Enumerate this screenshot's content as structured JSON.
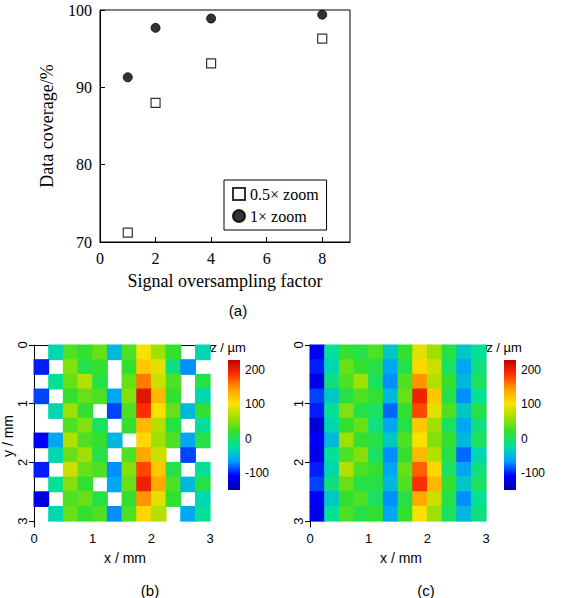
{
  "chart_data": [
    {
      "type": "scatter",
      "title": "(a)",
      "xlabel": "Signal oversampling factor",
      "ylabel": "Data coverage/%",
      "x": [
        1,
        2,
        4,
        8
      ],
      "series": [
        {
          "name": "0.5× zoom",
          "color": "#000000",
          "marker": "open_square",
          "values": [
            71.2,
            88.0,
            93.1,
            96.3
          ]
        },
        {
          "name": "1× zoom",
          "color": "#000000",
          "marker": "filled_circle",
          "values": [
            91.3,
            97.7,
            98.9,
            99.4
          ]
        }
      ],
      "xlim": [
        0,
        9
      ],
      "xticks": [
        0,
        2,
        4,
        6,
        8
      ],
      "ylim": [
        70,
        100
      ],
      "yticks": [
        70,
        80,
        90,
        100
      ],
      "grid": false,
      "legend": "lower right"
    },
    {
      "type": "heatmap",
      "title": "(b)",
      "xlabel": "x / mm",
      "ylabel": "y / mm",
      "xlim": [
        0,
        3.1
      ],
      "xticks": [
        0,
        1,
        2,
        3
      ],
      "ylim": [
        0,
        3.1
      ],
      "yticks": [
        0,
        1,
        2,
        3
      ],
      "x": [
        0.125,
        0.375,
        0.625,
        0.875,
        1.125,
        1.375,
        1.625,
        1.875,
        2.125,
        2.375,
        2.625,
        2.875
      ],
      "y": [
        0.125,
        0.375,
        0.625,
        0.875,
        1.125,
        1.375,
        1.625,
        1.875,
        2.125,
        2.375,
        2.625,
        2.875
      ],
      "z": [
        [
          null,
          -30,
          30,
          20,
          40,
          -50,
          30,
          100,
          60,
          20,
          null,
          -30
        ],
        [
          -100,
          null,
          50,
          10,
          20,
          null,
          20,
          120,
          90,
          -10,
          -70,
          null
        ],
        [
          null,
          -20,
          40,
          70,
          10,
          null,
          40,
          160,
          80,
          30,
          null,
          10
        ],
        [
          -90,
          null,
          20,
          40,
          30,
          -60,
          50,
          210,
          130,
          20,
          null,
          -30
        ],
        [
          null,
          -30,
          60,
          20,
          null,
          -90,
          30,
          190,
          100,
          40,
          -50,
          20
        ],
        [
          null,
          null,
          30,
          50,
          0,
          null,
          20,
          130,
          70,
          10,
          null,
          -20
        ],
        [
          -110,
          -60,
          70,
          30,
          20,
          -50,
          null,
          110,
          60,
          30,
          -60,
          10
        ],
        [
          null,
          -30,
          40,
          60,
          10,
          null,
          30,
          140,
          80,
          null,
          -90,
          null
        ],
        [
          -100,
          null,
          80,
          40,
          30,
          -70,
          50,
          180,
          120,
          10,
          null,
          -20
        ],
        [
          null,
          -20,
          50,
          20,
          null,
          -60,
          40,
          200,
          140,
          30,
          -50,
          10
        ],
        [
          -120,
          null,
          30,
          40,
          10,
          null,
          20,
          150,
          90,
          20,
          null,
          -30
        ],
        [
          null,
          -30,
          40,
          20,
          30,
          -70,
          30,
          110,
          70,
          null,
          -60,
          -20
        ]
      ],
      "colorbar": {
        "label": "z / µm",
        "range": [
          -150,
          230
        ],
        "ticks": [
          -100,
          0,
          100,
          200
        ]
      }
    },
    {
      "type": "heatmap",
      "title": "(c)",
      "xlabel": "x / mm",
      "xlim": [
        0,
        3.1
      ],
      "xticks": [
        0,
        1,
        2,
        3
      ],
      "ylim": [
        0,
        3.1
      ],
      "yticks": [
        0,
        1,
        2,
        3
      ],
      "x": [
        0.125,
        0.375,
        0.625,
        0.875,
        1.125,
        1.375,
        1.625,
        1.875,
        2.125,
        2.375,
        2.625,
        2.875
      ],
      "y": [
        0.125,
        0.375,
        0.625,
        0.875,
        1.125,
        1.375,
        1.625,
        1.875,
        2.125,
        2.375,
        2.625,
        2.875
      ],
      "z": [
        [
          -110,
          -20,
          20,
          10,
          30,
          -40,
          20,
          90,
          60,
          10,
          -40,
          -20
        ],
        [
          -100,
          -30,
          40,
          20,
          10,
          -60,
          10,
          110,
          80,
          0,
          -60,
          -10
        ],
        [
          -120,
          -10,
          30,
          60,
          0,
          -70,
          30,
          150,
          70,
          20,
          -50,
          0
        ],
        [
          -90,
          -40,
          10,
          30,
          20,
          -50,
          40,
          200,
          120,
          10,
          -70,
          -20
        ],
        [
          -100,
          -20,
          50,
          10,
          0,
          -80,
          20,
          180,
          90,
          30,
          -40,
          10
        ],
        [
          -130,
          -30,
          20,
          40,
          -10,
          -60,
          10,
          120,
          60,
          0,
          -60,
          -10
        ],
        [
          -110,
          -50,
          60,
          20,
          10,
          -40,
          30,
          100,
          50,
          20,
          -50,
          0
        ],
        [
          -120,
          -20,
          30,
          50,
          0,
          -70,
          20,
          130,
          70,
          10,
          -80,
          -30
        ],
        [
          -100,
          -30,
          70,
          30,
          20,
          -60,
          40,
          170,
          110,
          0,
          -60,
          -10
        ],
        [
          -90,
          -10,
          40,
          10,
          10,
          -50,
          30,
          190,
          130,
          20,
          -40,
          0
        ],
        [
          -110,
          -40,
          20,
          30,
          0,
          -70,
          10,
          140,
          80,
          10,
          -70,
          -20
        ],
        [
          -120,
          -20,
          30,
          10,
          20,
          -60,
          20,
          100,
          60,
          0,
          -50,
          -10
        ]
      ],
      "colorbar": {
        "label": "z / µm",
        "range": [
          -150,
          230
        ],
        "ticks": [
          -100,
          0,
          100,
          200
        ]
      }
    }
  ]
}
